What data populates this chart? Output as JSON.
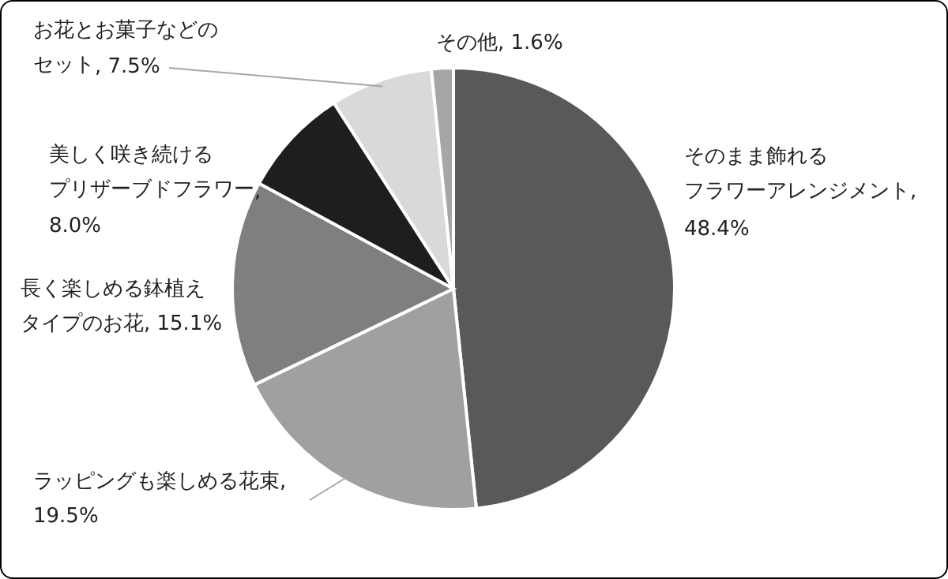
{
  "chart_data": {
    "type": "pie",
    "categories": [
      "そのまま飾れるフラワーアレンジメント",
      "ラッピングも楽しめる花束",
      "長く楽しめる鉢植えタイプのお花",
      "美しく咲き続けるプリザーブドフラワー",
      "お花とお菓子などのセット",
      "その他"
    ],
    "values": [
      48.4,
      19.5,
      15.1,
      8.0,
      7.5,
      1.6
    ],
    "value_labels": [
      ", 48.4%",
      ", 19.5%",
      ", 15.1%",
      ", 8.0%",
      ", 7.5%",
      ", 1.6%"
    ],
    "colors": [
      "#595959",
      "#a0a0a0",
      "#7f7f7f",
      "#1e1e1e",
      "#d9d9d9",
      "#a6a6a6"
    ],
    "data_labels": true
  }
}
